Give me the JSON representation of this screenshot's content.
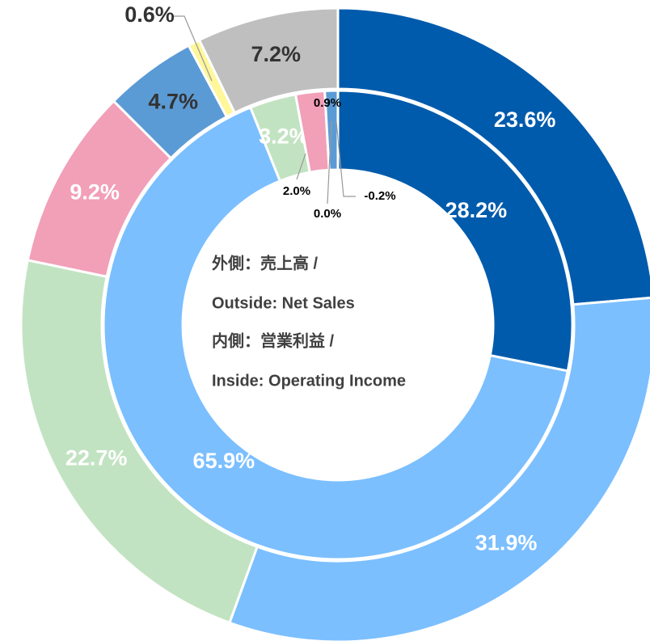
{
  "chart_data": {
    "type": "donut",
    "center_text": [
      "外側：売上高 /",
      "Outside: Net Sales",
      "内側：営業利益 /",
      "Inside: Operating Income"
    ],
    "series": [
      {
        "name": "Outside: Net Sales",
        "colors": [
          "#005bac",
          "#7bbfff",
          "#c2e3c2",
          "#f29fb8",
          "#5b9bd5",
          "#fff799",
          "#bfbfbf"
        ],
        "values": [
          23.6,
          31.9,
          22.7,
          9.2,
          4.7,
          0.6,
          7.2
        ],
        "value_labels": [
          "23.6%",
          "31.9%",
          "22.7%",
          "9.2%",
          "4.7%",
          "0.6%",
          "7.2%"
        ]
      },
      {
        "name": "Inside: Operating Income",
        "colors": [
          "#005bac",
          "#7bbfff",
          "#c2e3c2",
          "#f29fb8",
          "#5b9bd5",
          "#fff799",
          "#bfbfbf"
        ],
        "values": [
          28.2,
          65.9,
          3.2,
          2.0,
          0.9,
          0.0,
          -0.2
        ],
        "value_labels": [
          "28.2%",
          "65.9%",
          "3.2%",
          "2.0%",
          "0.9%",
          "0.0%",
          "-0.2%"
        ]
      }
    ]
  }
}
